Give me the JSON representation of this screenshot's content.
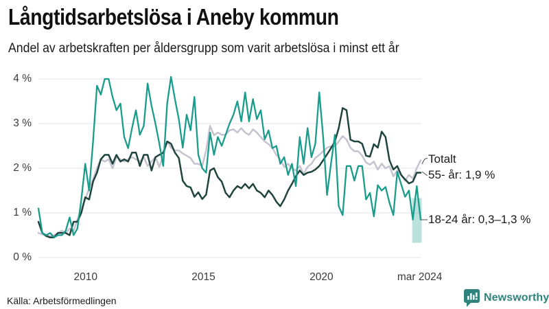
{
  "title": "Långtidsarbetslösa i Aneby kommun",
  "subtitle": "Andel av arbetskraften per åldersgrupp som varit arbetslösa i minst ett år",
  "source_note": "Källa: Arbetsförmedlingen",
  "brand": {
    "name": "Newsworthy",
    "color": "#2e837b",
    "icon": "bar-chart-speech-bubble-icon"
  },
  "colors": {
    "background": "#ffffff",
    "gridline": "#e9e8ee",
    "axis_text": "#3a3a3a",
    "totalt_line": "#c6c3d1",
    "age55_line": "#1f443d",
    "age1824_line": "#1a9c8c",
    "ci_band": "rgba(26,156,140,0.30)",
    "connector": "#4a4a4a"
  },
  "chart_data": {
    "type": "line",
    "title": "Långtidsarbetslösa i Aneby kommun",
    "subtitle": "Andel av arbetskraften per åldersgrupp som varit arbetslösa i minst ett år",
    "xlabel": "",
    "ylabel": "",
    "x_unit": "year (monthly observations)",
    "x_start": 2008.0,
    "x_end": 2024.21,
    "ylim": [
      0,
      4.3
    ],
    "grid": true,
    "legend_position": "inline-right",
    "yticks": [
      {
        "label": "0 %",
        "value": 0
      },
      {
        "label": "1 %",
        "value": 1
      },
      {
        "label": "2 %",
        "value": 2
      },
      {
        "label": "3 %",
        "value": 3
      },
      {
        "label": "4 %",
        "value": 4
      }
    ],
    "xticks": [
      {
        "label": "2010",
        "year": 2010
      },
      {
        "label": "2015",
        "year": 2015
      },
      {
        "label": "2020",
        "year": 2020
      },
      {
        "label": "mar 2024",
        "year": 2024.17
      }
    ],
    "series": [
      {
        "name": "Totalt",
        "label": "Totalt",
        "color": "#c6c3d1",
        "values": [
          0.55,
          0.52,
          0.5,
          0.48,
          0.5,
          0.55,
          0.6,
          0.55,
          0.65,
          0.6,
          0.85,
          1.1,
          1.3,
          1.55,
          1.75,
          2.0,
          2.2,
          2.15,
          2.2,
          2.0,
          2.25,
          2.2,
          2.15,
          2.2,
          2.25,
          2.2,
          2.15,
          2.25,
          2.05,
          2.15,
          2.25,
          2.03,
          2.3,
          2.6,
          2.46,
          2.4,
          2.4,
          2.33,
          2.28,
          2.23,
          2.1,
          2.1,
          2.05,
          2.4,
          2.95,
          2.74,
          2.8,
          2.75,
          2.75,
          2.85,
          2.87,
          2.8,
          2.9,
          2.8,
          2.75,
          2.87,
          2.8,
          2.7,
          2.6,
          2.54,
          2.45,
          2.3,
          2.2,
          2.03,
          2.1,
          2.0,
          1.95,
          2.05,
          1.87,
          2.03,
          2.1,
          2.23,
          2.3,
          2.38,
          2.46,
          2.49,
          2.49,
          2.6,
          2.72,
          2.64,
          2.46,
          2.38,
          2.38,
          2.28,
          2.13,
          2.08,
          2.15,
          1.97,
          2.1,
          2.0,
          2.05,
          1.82,
          1.95,
          1.85,
          1.72,
          1.85,
          1.77,
          2.0,
          2.18
        ]
      },
      {
        "name": "55- år",
        "label": "55- år: 1,9 %",
        "latest_value": "1,9 %",
        "color": "#1f443d",
        "values": [
          0.8,
          0.55,
          0.48,
          0.45,
          0.45,
          0.55,
          0.55,
          0.55,
          0.5,
          0.8,
          0.8,
          1.0,
          1.35,
          1.3,
          1.7,
          1.9,
          2.2,
          2.3,
          2.3,
          2.1,
          2.3,
          2.15,
          2.2,
          2.15,
          2.35,
          2.35,
          2.05,
          2.3,
          2.3,
          1.95,
          2.25,
          2.3,
          2.35,
          2.6,
          2.55,
          2.35,
          2.23,
          1.72,
          1.6,
          1.57,
          1.36,
          1.46,
          1.31,
          1.41,
          1.95,
          2.0,
          1.8,
          1.7,
          1.45,
          1.35,
          1.5,
          1.6,
          1.55,
          1.65,
          1.55,
          1.65,
          1.5,
          1.45,
          1.35,
          1.5,
          1.4,
          1.25,
          1.15,
          1.3,
          1.5,
          1.65,
          1.82,
          1.95,
          1.85,
          1.9,
          1.92,
          1.97,
          2.05,
          2.18,
          2.31,
          2.45,
          2.6,
          2.9,
          3.35,
          3.3,
          2.64,
          2.6,
          2.6,
          2.55,
          2.28,
          2.26,
          2.54,
          2.46,
          2.82,
          2.7,
          2.18,
          1.97,
          2.05,
          1.85,
          1.75,
          1.66,
          1.7,
          1.9,
          1.9
        ]
      },
      {
        "name": "18-24 år",
        "label": "18-24 år: 0,3–1,3 %",
        "latest_value": "0,3–1,3 %",
        "color": "#1a9c8c",
        "ci_band": {
          "from_year": 2023.85,
          "to_year": 2024.21,
          "low": 0.33,
          "high": 1.33
        },
        "values": [
          1.1,
          0.55,
          0.5,
          0.55,
          0.45,
          0.5,
          0.5,
          0.6,
          0.9,
          0.5,
          0.65,
          1.3,
          2.1,
          1.5,
          2.6,
          3.85,
          3.65,
          4.0,
          4.0,
          3.6,
          3.3,
          3.45,
          2.7,
          2.45,
          2.9,
          3.3,
          2.75,
          2.95,
          3.9,
          3.4,
          3.0,
          2.55,
          2.05,
          3.45,
          4.05,
          3.55,
          3.1,
          2.46,
          3.2,
          2.85,
          3.6,
          2.3,
          2.0,
          1.9,
          2.8,
          2.3,
          2.7,
          2.5,
          2.75,
          3.0,
          3.2,
          3.5,
          3.05,
          3.7,
          3.05,
          3.55,
          3.1,
          3.3,
          2.65,
          2.85,
          2.45,
          2.5,
          2.1,
          2.25,
          1.85,
          2.1,
          1.6,
          2.7,
          2.1,
          2.9,
          2.25,
          2.55,
          3.7,
          2.7,
          1.4,
          2.1,
          2.75,
          1.15,
          0.95,
          2.05,
          2.05,
          1.72,
          2.05,
          2.05,
          1.3,
          1.45,
          0.92,
          1.62,
          1.5,
          1.58,
          1.23,
          0.95,
          1.92,
          1.64,
          1.36,
          1.5,
          0.85,
          1.6,
          0.85
        ]
      }
    ]
  }
}
